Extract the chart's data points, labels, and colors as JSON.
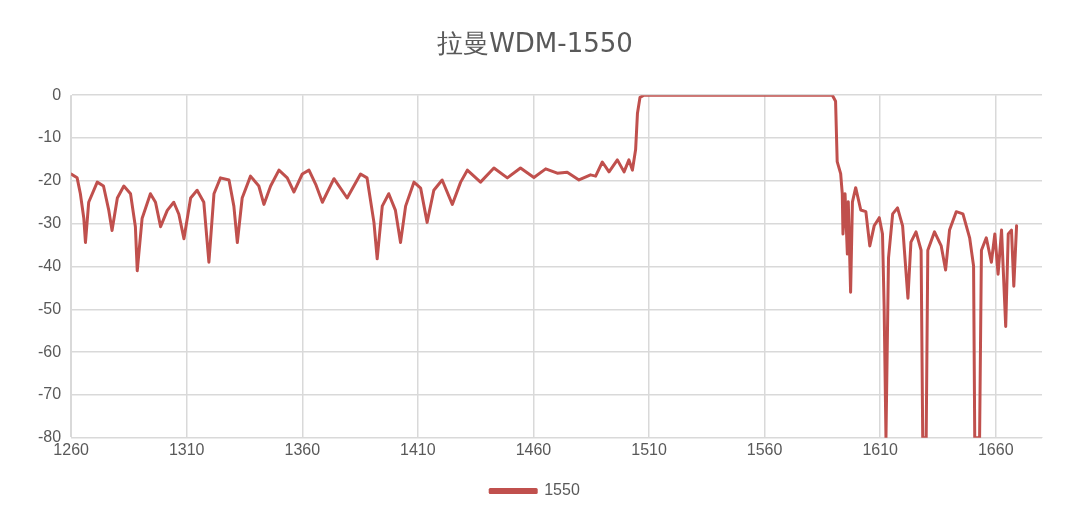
{
  "chart_data": {
    "type": "line",
    "title": "拉曼WDM-1550",
    "x": [
      1260,
      1262.6,
      1264,
      1265.5,
      1266.2,
      1267.6,
      1271.3,
      1274,
      1276.3,
      1277.7,
      1280,
      1282.8,
      1285.7,
      1287.8,
      1288.6,
      1290.7,
      1294.3,
      1296.5,
      1298.7,
      1301.6,
      1304.4,
      1306.6,
      1308.8,
      1311.7,
      1314.5,
      1317.4,
      1319.6,
      1321.8,
      1324.6,
      1328.3,
      1330.4,
      1331.9,
      1334,
      1337.6,
      1341.2,
      1343.4,
      1346.3,
      1349.9,
      1353.5,
      1356.4,
      1360,
      1362.9,
      1365.8,
      1368.7,
      1373.7,
      1379.4,
      1385.2,
      1388,
      1391,
      1392.4,
      1394.6,
      1397.4,
      1400.3,
      1402.5,
      1404.7,
      1408.3,
      1411.2,
      1414,
      1416.9,
      1420.5,
      1424.9,
      1428.5,
      1431.4,
      1437.1,
      1442.9,
      1448.7,
      1454.4,
      1460.2,
      1465.3,
      1470.3,
      1474.6,
      1479.7,
      1484.7,
      1486.9,
      1489.8,
      1492.7,
      1496.3,
      1499.2,
      1501.3,
      1502.8,
      1504.2,
      1505,
      1506.1,
      1507.8,
      1589.3,
      1590.7,
      1591.4,
      1592.9,
      1593.6,
      1593.9,
      1594.8,
      1595.8,
      1596.2,
      1597.2,
      1598,
      1599.4,
      1601.6,
      1603.8,
      1605.5,
      1607.4,
      1609.6,
      1611,
      1611.7,
      1612.5,
      1613.6,
      1615.4,
      1617.5,
      1619.7,
      1622,
      1623.3,
      1625.5,
      1627.7,
      1628.4,
      1629.9,
      1630.6,
      1633.5,
      1636.4,
      1638.3,
      1640,
      1642.9,
      1645.8,
      1648.7,
      1650.4,
      1650.9,
      1653,
      1653.8,
      1655.9,
      1658.1,
      1659.6,
      1661,
      1662.5,
      1664.3,
      1665.4,
      1666.8,
      1667.8,
      1669
    ],
    "series": [
      {
        "name": "1550",
        "color": "#c0504d",
        "values": [
          -18.4,
          -19.3,
          -23,
          -28.8,
          -34.4,
          -25,
          -20.3,
          -21.2,
          -26.9,
          -31.6,
          -24,
          -21.2,
          -23,
          -30.7,
          -41,
          -28.8,
          -23,
          -25,
          -30.7,
          -26.9,
          -25,
          -27.8,
          -33.5,
          -24,
          -22.2,
          -25,
          -39,
          -23,
          -19.3,
          -19.8,
          -25.9,
          -34.4,
          -24,
          -18.9,
          -21.2,
          -25.5,
          -21.2,
          -17.5,
          -19.3,
          -22.6,
          -18.4,
          -17.5,
          -20.8,
          -25,
          -19.5,
          -24,
          -18.4,
          -19.3,
          -29.7,
          -38.2,
          -25.9,
          -23,
          -26.9,
          -34.4,
          -25.9,
          -20.3,
          -21.7,
          -29.7,
          -22.2,
          -19.8,
          -25.5,
          -20.3,
          -17.5,
          -20.3,
          -17,
          -19.3,
          -17,
          -19.2,
          -17.2,
          -18.2,
          -18,
          -19.8,
          -18.6,
          -18.9,
          -15.6,
          -17.9,
          -15.1,
          -17.9,
          -15.1,
          -17.5,
          -12.7,
          -4.2,
          -0.5,
          0,
          0,
          -1.4,
          -15.5,
          -18.3,
          -23,
          -32.4,
          -23,
          -37.1,
          -24.9,
          -46,
          -24.9,
          -21.6,
          -26.8,
          -27.2,
          -35.2,
          -30.5,
          -28.6,
          -32.4,
          -49.3,
          -80,
          -38,
          -27.7,
          -26.3,
          -30.5,
          -47.4,
          -34.3,
          -31.9,
          -36.2,
          -80,
          -80,
          -36.2,
          -31.9,
          -35.2,
          -40.8,
          -31.5,
          -27.2,
          -27.7,
          -33.3,
          -39.9,
          -80,
          -80,
          -36.2,
          -33.3,
          -39,
          -32.4,
          -41.8,
          -31.5,
          -54,
          -32.4,
          -31.5,
          -44.6,
          -30.5
        ]
      }
    ],
    "xlim": [
      1260,
      1680
    ],
    "xticks": [
      1260,
      1310,
      1360,
      1410,
      1460,
      1510,
      1560,
      1610,
      1660
    ],
    "ylim": [
      -80,
      0
    ],
    "yticks": [
      -80,
      -70,
      -60,
      -50,
      -40,
      -30,
      -20,
      -10,
      0
    ],
    "grid": true,
    "legend": "bottom",
    "marker": "none",
    "line_style": "solid"
  }
}
